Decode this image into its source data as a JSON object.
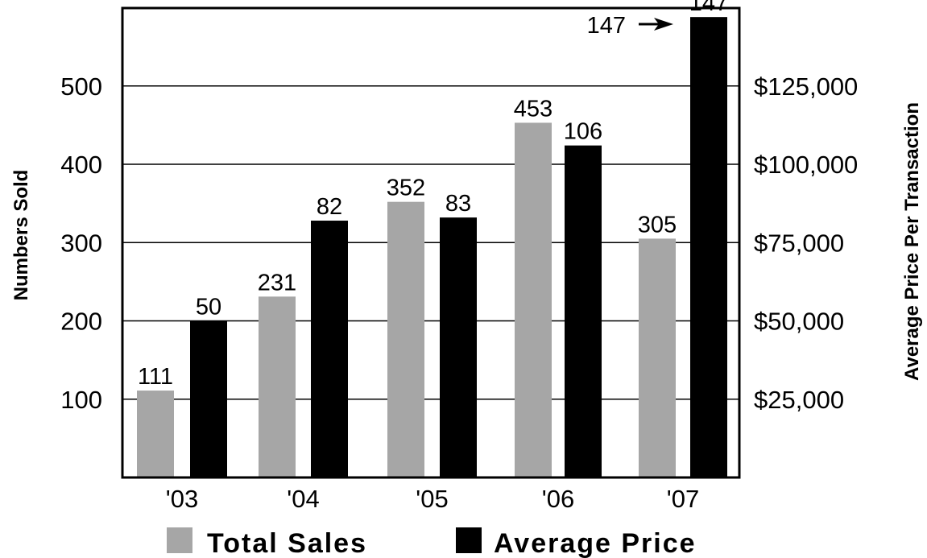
{
  "chart_data": {
    "type": "bar",
    "categories": [
      "'03",
      "'04",
      "'05",
      "'06",
      "'07"
    ],
    "series": [
      {
        "name": "Total Sales",
        "axis": "left",
        "values": [
          111,
          231,
          352,
          453,
          305
        ],
        "color": "#a6a6a6"
      },
      {
        "name": "Average Price",
        "axis": "right",
        "values": [
          50,
          82,
          83,
          106,
          147
        ],
        "color": "#000000"
      }
    ],
    "left_axis": {
      "label": "Numbers Sold",
      "ylim": [
        0,
        590
      ],
      "ticks": [
        100,
        200,
        300,
        400,
        500
      ]
    },
    "right_axis": {
      "label": "Average Price Per Transaction",
      "ylim": [
        0,
        147500
      ],
      "ticks": [
        "$25,000",
        "$50,000",
        "$75,000",
        "$100,000",
        "$125,000"
      ]
    },
    "grid": true,
    "legend_position": "bottom",
    "annotation": "147"
  }
}
